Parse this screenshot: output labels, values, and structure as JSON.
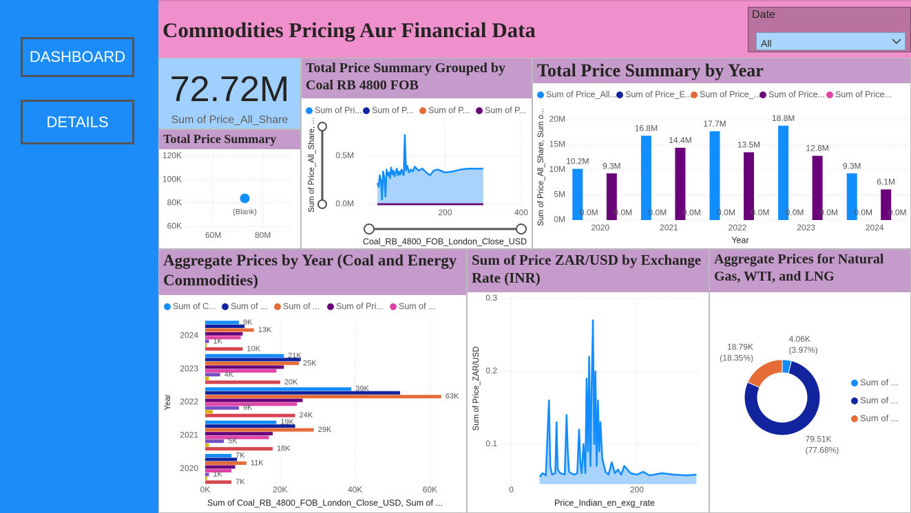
{
  "nav": [
    "DASHBOARD",
    "DETAILS"
  ],
  "header": {
    "title": "Commodities Pricing Aur Financial Data",
    "slicer_label": "Date",
    "slicer_value": "All"
  },
  "kpi": {
    "value": "72.72M",
    "label": "Sum of Price_All_Share"
  },
  "chart_data": [
    {
      "type": "scatter",
      "title": "Total Price Summary",
      "x": [
        72720000
      ],
      "values": [
        84000
      ],
      "labels": [
        "(Blank)"
      ],
      "color": "#118dff",
      "xlim": [
        49000000,
        92000000
      ],
      "xticks": [
        {
          "value": 60000000,
          "label": "60M"
        },
        {
          "value": 80000000,
          "label": "80M"
        }
      ],
      "ylim": [
        58000,
        124000
      ],
      "yticks": [
        {
          "value": 60000,
          "label": "60K"
        },
        {
          "value": 80000,
          "label": "80K"
        },
        {
          "value": 100000,
          "label": "100K"
        },
        {
          "value": 120000,
          "label": "120K"
        }
      ],
      "grid": true
    },
    {
      "type": "area",
      "title": "Total Price Summary Grouped by Coal RB 4800 FOB",
      "x_label": "Coal_RB_4800_FOB_London_Close_USD",
      "y_label": "Sum of Price_All_Share, ...",
      "x": [
        22,
        25,
        28,
        31,
        34,
        37,
        40,
        43,
        46,
        49,
        52,
        55,
        58,
        61,
        64,
        67,
        70,
        73,
        76,
        79,
        82,
        85,
        88,
        91,
        94,
        97,
        100,
        105,
        110,
        115,
        120,
        130,
        140,
        150,
        160,
        170,
        180,
        200,
        220,
        240,
        260,
        280,
        300
      ],
      "series": [
        {
          "name": "Sum of Pri...",
          "color": "#118dff",
          "fill_color": "#a9d3fb",
          "values": [
            220000,
            180000,
            300000,
            250000,
            50000,
            340000,
            280000,
            80000,
            360000,
            300000,
            330000,
            270000,
            380000,
            310000,
            350000,
            290000,
            330000,
            370000,
            300000,
            340000,
            310000,
            360000,
            330000,
            300000,
            720000,
            350000,
            400000,
            330000,
            360000,
            340000,
            390000,
            350000,
            370000,
            330000,
            300000,
            350000,
            360000,
            330000,
            340000,
            360000,
            370000,
            370000,
            370000
          ]
        },
        {
          "name": "Sum of P...",
          "color": "#12239e",
          "values": [
            0,
            0,
            0,
            0,
            0,
            0,
            0,
            0,
            0,
            0,
            0,
            0,
            0,
            0,
            0,
            0,
            0,
            0,
            0,
            0,
            0,
            0,
            0,
            0,
            0,
            0,
            0,
            0,
            0,
            0,
            0,
            0,
            0,
            0,
            0,
            0,
            0,
            0,
            0,
            0,
            0,
            0,
            0
          ]
        },
        {
          "name": "Sum of P...",
          "color": "#e66c37",
          "values": [
            0,
            0,
            0,
            0,
            0,
            0,
            0,
            0,
            0,
            0,
            0,
            0,
            0,
            0,
            0,
            0,
            0,
            0,
            0,
            0,
            0,
            0,
            0,
            0,
            0,
            0,
            0,
            0,
            0,
            0,
            0,
            0,
            0,
            0,
            0,
            0,
            0,
            0,
            0,
            0,
            0,
            0,
            0
          ]
        },
        {
          "name": "Sum of P...",
          "color": "#6b007b",
          "values": [
            0,
            0,
            0,
            0,
            0,
            0,
            0,
            0,
            0,
            0,
            0,
            0,
            0,
            0,
            0,
            0,
            0,
            0,
            0,
            0,
            0,
            0,
            0,
            0,
            0,
            0,
            0,
            0,
            0,
            0,
            0,
            0,
            0,
            0,
            0,
            0,
            0,
            0,
            0,
            0,
            0,
            0,
            0
          ]
        }
      ],
      "xlim": [
        0,
        400
      ],
      "xticks": [
        200,
        400
      ],
      "ylim": [
        0,
        850000
      ],
      "yticks": [
        {
          "value": 0,
          "label": "0.0M"
        },
        {
          "value": 500000,
          "label": "0.5M"
        }
      ],
      "grid": true
    },
    {
      "type": "bar",
      "title": "Total Price Summary by Year",
      "x_label": "Year",
      "y_label": "Sum of Price_All_Share, Sum o...",
      "categories": [
        "2020",
        "2021",
        "2022",
        "2023",
        "2024"
      ],
      "series": [
        {
          "name": "Sum of Price_All...",
          "color": "#118dff",
          "values": [
            10200000,
            16800000,
            17700000,
            18800000,
            9300000
          ],
          "value_labels": [
            "10.2M",
            "16.8M",
            "17.7M",
            "18.8M",
            "9.3M"
          ]
        },
        {
          "name": "Sum of Price_E...",
          "color": "#12239e",
          "values": [
            0,
            0,
            0,
            0,
            0
          ],
          "value_labels": [
            "0.0M",
            "0.0M",
            "0.0M",
            "0.0M",
            "0.0M"
          ]
        },
        {
          "name": "Sum of Price_...",
          "color": "#e66c37",
          "values": [
            0,
            0,
            0,
            0,
            0
          ]
        },
        {
          "name": "Sum of Price...",
          "color": "#6b007b",
          "values": [
            9300000,
            14400000,
            13500000,
            12800000,
            6100000
          ],
          "value_labels": [
            "9.3M",
            "14.4M",
            "13.5M",
            "12.8M",
            "6.1M"
          ]
        },
        {
          "name": "Sum of Price...",
          "color": "#e044a7",
          "values": [
            0,
            0,
            0,
            0,
            0
          ],
          "value_labels": [
            "0.0M",
            "0.0M",
            "0.0M",
            "0.0M",
            "0.0M"
          ]
        }
      ],
      "ylim": [
        0,
        20000000
      ],
      "yticks": [
        {
          "value": 0,
          "label": "0M"
        },
        {
          "value": 5000000,
          "label": "5M"
        },
        {
          "value": 10000000,
          "label": "10M"
        },
        {
          "value": 15000000,
          "label": "15M"
        },
        {
          "value": 20000000,
          "label": "20M"
        }
      ],
      "grid": true
    },
    {
      "type": "barh",
      "title": "Aggregate Prices by Year (Coal and Energy Commodities)",
      "x_label": "Sum of Coal_RB_4800_FOB_London_Close_USD, Sum of ...",
      "y_label": "Year",
      "categories": [
        "2024",
        "2023",
        "2022",
        "2021",
        "2020"
      ],
      "series": [
        {
          "name": "Sum of C...",
          "color": "#118dff",
          "values": [
            9000,
            21000,
            39000,
            19000,
            7000
          ],
          "value_labels": [
            "9K",
            "21K",
            "39K",
            "19K",
            "7K"
          ]
        },
        {
          "name": "Sum of ...",
          "color": "#12239e",
          "values": [
            10500,
            25500,
            52000,
            24000,
            8500
          ]
        },
        {
          "name": "Sum of ...",
          "color": "#e66c37",
          "values": [
            13000,
            25000,
            63000,
            29000,
            11000
          ],
          "value_labels": [
            "13K",
            "25K",
            "63K",
            "29K",
            "11K"
          ]
        },
        {
          "name": "Sum of Pri...",
          "color": "#6b007b",
          "values": [
            10000,
            21000,
            26000,
            18000,
            8000
          ]
        },
        {
          "name": "Sum of ...",
          "color": "#e044a7",
          "values": [
            9500,
            19000,
            24500,
            17000,
            7000
          ]
        },
        {
          "color": "#744ec2",
          "values": [
            1000,
            4000,
            9000,
            5000,
            1000
          ],
          "value_labels": [
            "1K",
            "4K",
            "9K",
            "5K",
            "1K"
          ]
        },
        {
          "color": "#d9b300",
          "values": [
            400,
            1000,
            2000,
            1000,
            500
          ]
        },
        {
          "color": "#d64550",
          "values": [
            10000,
            20000,
            24000,
            18000,
            7000
          ],
          "value_labels": [
            "10K",
            "20K",
            "24K",
            "18K",
            "7K"
          ]
        }
      ],
      "xlim": [
        0,
        68000
      ],
      "xticks": [
        {
          "value": 0,
          "label": "0K"
        },
        {
          "value": 20000,
          "label": "20K"
        },
        {
          "value": 40000,
          "label": "40K"
        },
        {
          "value": 60000,
          "label": "60K"
        }
      ],
      "grid": true
    },
    {
      "type": "line",
      "title": "Sum of Price ZAR/USD by Exchange Rate (INR)",
      "x_label": "Price_Indian_en_exg_rate",
      "y_label": "Sum of Price_ZAR/USD",
      "x": [
        45,
        50,
        55,
        58,
        60,
        62,
        65,
        70,
        72,
        74,
        78,
        85,
        88,
        90,
        92,
        95,
        100,
        105,
        108,
        110,
        112,
        115,
        118,
        120,
        122,
        124,
        126,
        128,
        130,
        132,
        134,
        136,
        138,
        140,
        142,
        145,
        150,
        155,
        160,
        165,
        170,
        175,
        180,
        190,
        200,
        210,
        220,
        240,
        260,
        280,
        295
      ],
      "series": [
        {
          "color": "#118dff",
          "fill_color": "#a9d3fb",
          "values": [
            0.055,
            0.06,
            0.057,
            0.12,
            0.16,
            0.07,
            0.058,
            0.06,
            0.13,
            0.065,
            0.06,
            0.058,
            0.14,
            0.09,
            0.062,
            0.06,
            0.058,
            0.06,
            0.12,
            0.075,
            0.06,
            0.1,
            0.06,
            0.19,
            0.09,
            0.22,
            0.07,
            0.18,
            0.27,
            0.1,
            0.2,
            0.07,
            0.16,
            0.09,
            0.13,
            0.08,
            0.062,
            0.058,
            0.075,
            0.06,
            0.065,
            0.058,
            0.07,
            0.06,
            0.058,
            0.062,
            0.057,
            0.06,
            0.058,
            0.057,
            0.058
          ]
        }
      ],
      "xlim": [
        -16,
        300
      ],
      "xticks": [
        0,
        200
      ],
      "ylim": [
        0.045,
        0.3
      ],
      "yticks": [
        0.1,
        0.2,
        0.3
      ],
      "grid": true
    },
    {
      "type": "pie",
      "title": "Aggregate Prices for Natural Gas, WTI, and LNG",
      "hole": true,
      "categories": [
        "Sum of ...",
        "Sum of ...",
        "Sum of ..."
      ],
      "values": [
        4060,
        79510,
        18790
      ],
      "value_labels": [
        "4.06K",
        "79.51K",
        "18.79K"
      ],
      "percent_labels": [
        "(3.97%)",
        "(77.68%)",
        "(18.35%)"
      ],
      "colors": [
        "#118dff",
        "#12239e",
        "#e66c37"
      ]
    }
  ]
}
